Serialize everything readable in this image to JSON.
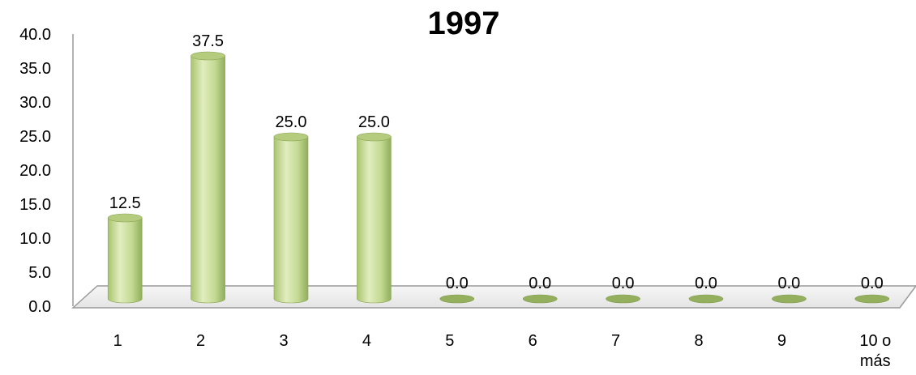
{
  "chart_data": {
    "type": "bar",
    "title": "1997",
    "xlabel": "",
    "ylabel": "",
    "categories": [
      "1",
      "2",
      "3",
      "4",
      "5",
      "6",
      "7",
      "8",
      "9",
      "10 o más"
    ],
    "values": [
      12.5,
      37.5,
      25.0,
      25.0,
      0.0,
      0.0,
      0.0,
      0.0,
      0.0,
      0.0
    ],
    "value_labels": [
      "12.5",
      "37.5",
      "25.0",
      "25.0",
      "0.0",
      "0.0",
      "0.0",
      "0.0",
      "0.0",
      "0.0"
    ],
    "ylim": [
      0,
      40
    ],
    "yticks": [
      "0.0",
      "5.0",
      "10.0",
      "15.0",
      "20.0",
      "25.0",
      "30.0",
      "35.0",
      "40.0"
    ],
    "grid": false,
    "legend": "none",
    "bar_color": "#c6dc93",
    "bar_color_dark": "#8aa656",
    "bar_color_light": "#e4efc4"
  }
}
